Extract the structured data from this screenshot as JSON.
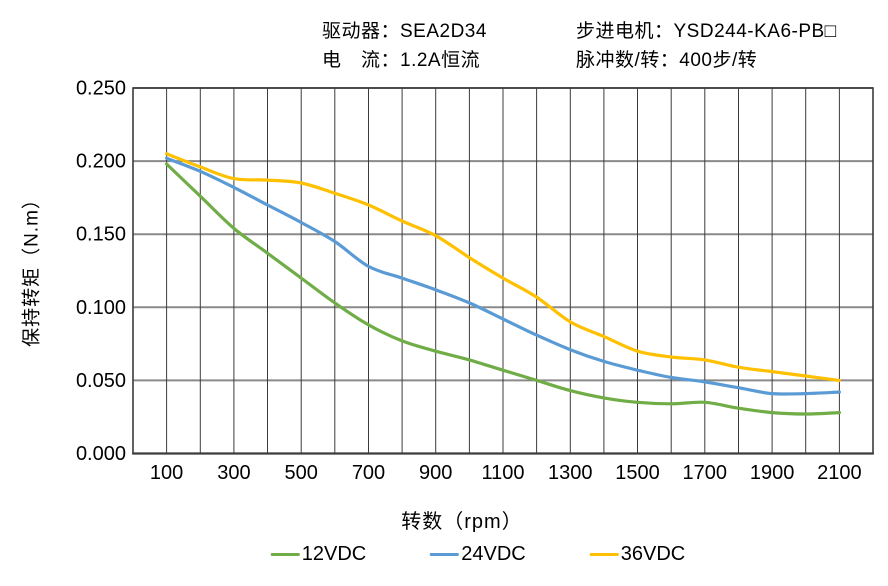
{
  "header": {
    "driver": "驱动器：SEA2D34",
    "motor": "步进电机：YSD244-KA6-PB□",
    "current": "电　流：1.2A恒流",
    "pulses_per_rev": "脉冲数/转：400步/转"
  },
  "colors": {
    "grid_vertical": "#3c3c3c",
    "grid_horizontal": "#8a8a8a",
    "plot_border": "#3c3c3c",
    "axis": "#3c3c3c",
    "text": "#000000",
    "background": "#ffffff"
  },
  "chart_data": {
    "type": "line",
    "title": "",
    "xlabel": "转数（rpm）",
    "ylabel": "保持转矩（N.m）",
    "xlim": [
      0,
      2200
    ],
    "ylim": [
      0,
      0.25
    ],
    "grid": true,
    "x_grid_step": 100,
    "legend_position": "bottom",
    "x_ticks": [
      100,
      300,
      500,
      700,
      900,
      1100,
      1300,
      1500,
      1700,
      1900,
      2100
    ],
    "y_ticks": [
      0,
      0.05,
      0.1,
      0.15,
      0.2,
      0.25
    ],
    "y_tick_labels": [
      "0.000",
      "0.050",
      "0.100",
      "0.150",
      "0.200",
      "0.250"
    ],
    "x": [
      100,
      200,
      300,
      400,
      500,
      600,
      700,
      800,
      900,
      1000,
      1100,
      1200,
      1300,
      1400,
      1500,
      1600,
      1700,
      1800,
      1900,
      2000,
      2100
    ],
    "series": [
      {
        "name": "12VDC",
        "color": "#70AD47",
        "values": [
          0.198,
          0.176,
          0.154,
          0.137,
          0.12,
          0.103,
          0.088,
          0.077,
          0.07,
          0.064,
          0.057,
          0.05,
          0.043,
          0.038,
          0.035,
          0.034,
          0.035,
          0.031,
          0.028,
          0.027,
          0.028
        ]
      },
      {
        "name": "24VDC",
        "color": "#5B9BD5",
        "values": [
          0.202,
          0.193,
          0.182,
          0.17,
          0.158,
          0.145,
          0.128,
          0.12,
          0.112,
          0.103,
          0.092,
          0.081,
          0.071,
          0.063,
          0.057,
          0.052,
          0.049,
          0.045,
          0.041,
          0.041,
          0.042
        ]
      },
      {
        "name": "36VDC",
        "color": "#FFC000",
        "values": [
          0.205,
          0.196,
          0.188,
          0.187,
          0.185,
          0.178,
          0.17,
          0.159,
          0.149,
          0.134,
          0.12,
          0.107,
          0.09,
          0.08,
          0.07,
          0.066,
          0.064,
          0.059,
          0.056,
          0.053,
          0.05
        ]
      }
    ]
  }
}
